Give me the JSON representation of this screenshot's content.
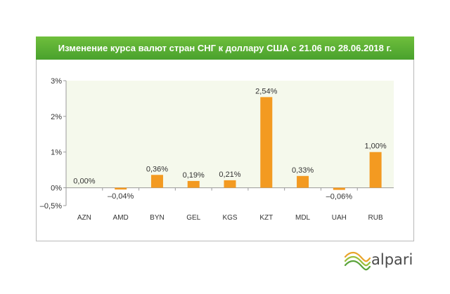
{
  "chart_data": {
    "type": "bar",
    "title": "Изменение курса валют стран СНГ к доллару США с 21.06 по 28.06.2018 г.",
    "categories": [
      "AZN",
      "AMD",
      "BYN",
      "GEL",
      "KGS",
      "KZT",
      "MDL",
      "UAH",
      "RUB"
    ],
    "values": [
      0.0,
      -0.04,
      0.36,
      0.19,
      0.21,
      2.54,
      0.33,
      -0.06,
      1.0
    ],
    "value_labels": [
      "0,00%",
      "–0,04%",
      "0,36%",
      "0,19%",
      "0,21%",
      "2,54%",
      "0,33%",
      "–0,06%",
      "1,00%"
    ],
    "yticks": [
      3,
      2,
      1,
      0,
      -0.5
    ],
    "ytick_labels": [
      "3%",
      "2%",
      "1%",
      "0%",
      "–0,5%"
    ],
    "ylim": [
      -0.5,
      3
    ],
    "xlabel": "",
    "ylabel": "",
    "grid": false,
    "colors": {
      "bar": "#f39a21",
      "positive_area": "#f5f9ec",
      "title_bar": "#55aa33"
    }
  },
  "brand": {
    "name": "alpari",
    "logo_icon": "alpari-wave-logo-icon",
    "colors": [
      "#e9a52c",
      "#7cb342",
      "#4a4a4a"
    ]
  }
}
